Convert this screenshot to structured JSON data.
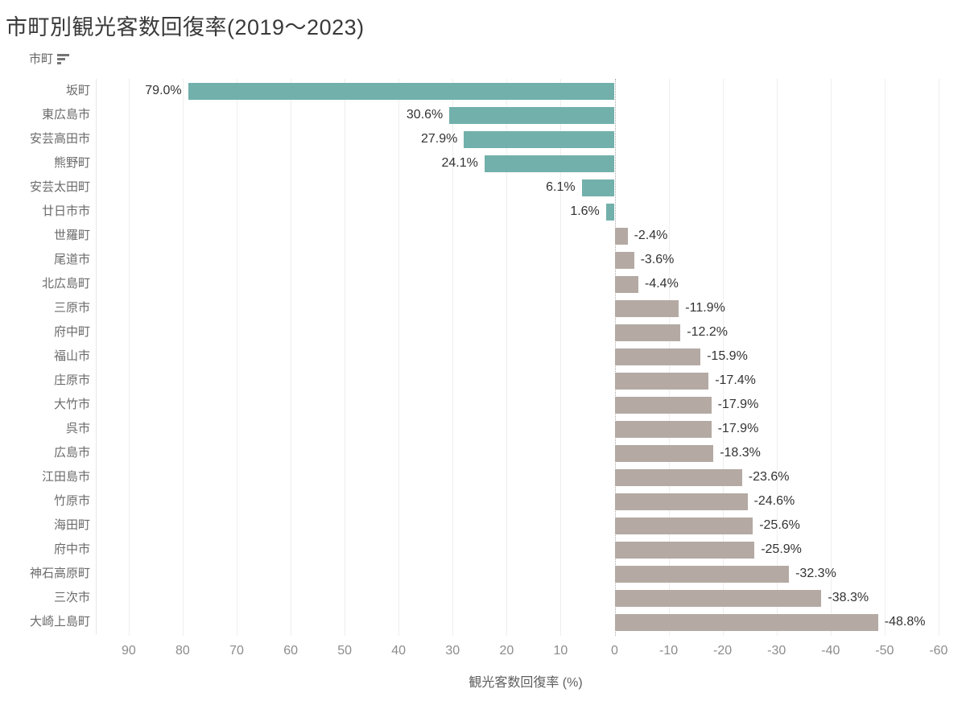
{
  "title": "市町別観光客数回復率(2019〜2023)",
  "column_header": {
    "label": "市町"
  },
  "x_axis_title": "観光客数回復率 (%)",
  "chart_data": {
    "type": "bar",
    "orientation": "horizontal",
    "title": "市町別観光客数回復率(2019〜2023)",
    "xlabel": "観光客数回復率 (%)",
    "categories": [
      "坂町",
      "東広島市",
      "安芸高田市",
      "熊野町",
      "安芸太田町",
      "廿日市市",
      "世羅町",
      "尾道市",
      "北広島町",
      "三原市",
      "府中町",
      "福山市",
      "庄原市",
      "大竹市",
      "呉市",
      "広島市",
      "江田島市",
      "竹原市",
      "海田町",
      "府中市",
      "神石高原町",
      "三次市",
      "大崎上島町"
    ],
    "values": [
      79.0,
      30.6,
      27.9,
      24.1,
      6.1,
      1.6,
      -2.4,
      -3.6,
      -4.4,
      -11.9,
      -12.2,
      -15.9,
      -17.4,
      -17.9,
      -17.9,
      -18.3,
      -23.6,
      -24.6,
      -25.6,
      -25.9,
      -32.3,
      -38.3,
      -48.8
    ],
    "value_labels": [
      "79.0%",
      "30.6%",
      "27.9%",
      "24.1%",
      "6.1%",
      "1.6%",
      "-2.4%",
      "-3.6%",
      "-4.4%",
      "-11.9%",
      "-12.2%",
      "-15.9%",
      "-17.4%",
      "-17.9%",
      "-17.9%",
      "-18.3%",
      "-23.6%",
      "-24.6%",
      "-25.6%",
      "-25.9%",
      "-32.3%",
      "-38.3%",
      "-48.8%"
    ],
    "x_ticks": [
      90,
      80,
      70,
      60,
      50,
      40,
      30,
      20,
      10,
      0,
      -10,
      -20,
      -30,
      -40,
      -50,
      -60
    ],
    "x_axis_reversed": true,
    "xlim": [
      95,
      -62
    ],
    "grid": "vertical-only",
    "legend": "none",
    "colors": {
      "positive": "#72b0ab",
      "negative": "#b4aaa3"
    }
  }
}
